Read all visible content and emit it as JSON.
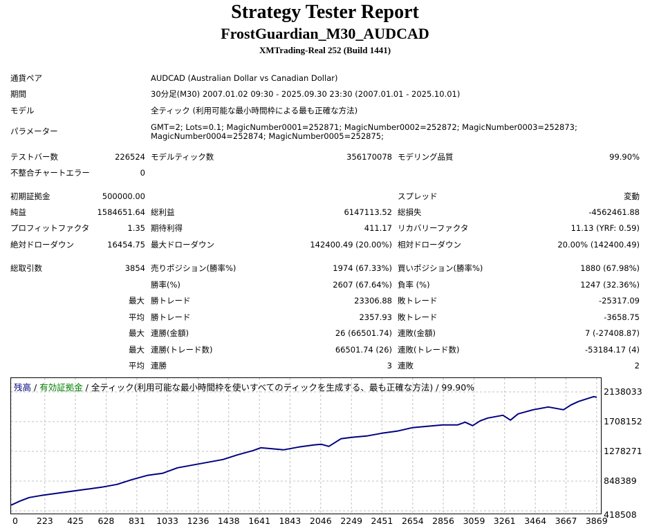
{
  "report": {
    "title": "Strategy Tester Report",
    "subtitle": "FrostGuardian_M30_AUDCAD",
    "server": "XMTrading-Real 252 (Build 1441)"
  },
  "info": {
    "symbol_label": "通貨ペア",
    "symbol": "AUDCAD (Australian Dollar vs Canadian Dollar)",
    "period_label": "期間",
    "period": "30分足(M30) 2007.01.02 09:30 - 2025.09.30 23:30 (2007.01.01 - 2025.10.01)",
    "model_label": "モデル",
    "model": "全ティック (利用可能な最小時間枠による最も正確な方法)",
    "params_label": "パラメーター",
    "params_line1": "GMT=2; Lots=0.1; MagicNumber0001=252871; MagicNumber0002=252872; MagicNumber0003=252873;",
    "params_line2": "MagicNumber0004=252874; MagicNumber0005=252875;"
  },
  "bars": {
    "bars_label": "テストバー数",
    "bars": "226524",
    "ticks_label": "モデルティック数",
    "ticks": "356170078",
    "quality_label": "モデリング品質",
    "quality": "99.90%",
    "errors_label": "不整合チャートエラー",
    "errors": "0"
  },
  "results": {
    "deposit_label": "初期証拠金",
    "deposit": "500000.00",
    "spread_label": "スプレッド",
    "spread": "変動",
    "net_label": "純益",
    "net": "1584651.64",
    "gross_profit_label": "総利益",
    "gross_profit": "6147113.52",
    "gross_loss_label": "総損失",
    "gross_loss": "-4562461.88",
    "pf_label": "プロフィットファクタ",
    "pf": "1.35",
    "expected_label": "期待利得",
    "expected": "411.17",
    "recovery_label": "リカバリーファクタ",
    "recovery": "11.13 (YRF: 0.59)",
    "abs_dd_label": "絶対ドローダウン",
    "abs_dd": "16454.75",
    "max_dd_label": "最大ドローダウン",
    "max_dd": "142400.49 (20.00%)",
    "rel_dd_label": "相対ドローダウン",
    "rel_dd": "20.00% (142400.49)"
  },
  "trades": {
    "total_label": "総取引数",
    "total": "3854",
    "short_label": "売りポジション(勝率%)",
    "short": "1974 (67.33%)",
    "long_label": "買いポジション(勝率%)",
    "long": "1880 (67.98%)",
    "win_label": "勝率(%)",
    "win": "2607 (67.64%)",
    "loss_label": "負率 (%)",
    "loss": "1247 (32.36%)",
    "max_prefix": "最大",
    "avg_prefix": "平均",
    "largest_win_label": "勝トレード",
    "largest_win": "23306.88",
    "largest_loss_label": "敗トレード",
    "largest_loss": "-25317.09",
    "avg_win_label": "勝トレード",
    "avg_win": "2357.93",
    "avg_loss_label": "敗トレード",
    "avg_loss": "-3658.75",
    "max_consec_win_label": "連勝(金額)",
    "max_consec_win": "26 (66501.74)",
    "max_consec_loss_label": "連敗(金額)",
    "max_consec_loss": "7 (-27408.87)",
    "max_consec_profit_label": "連勝(トレード数)",
    "max_consec_profit": "66501.74 (26)",
    "max_consec_lossamt_label": "連敗(トレード数)",
    "max_consec_lossamt": "-53184.17 (4)",
    "avg_consec_win_label": "連勝",
    "avg_consec_win": "3",
    "avg_consec_loss_label": "連敗",
    "avg_consec_loss": "2"
  },
  "legend": {
    "balance": "残高",
    "sep1": " / ",
    "equity": "有効証拠金",
    "sep2": " / ",
    "rest": "全ティック(利用可能な最小時間枠を使いすべてのティックを生成する、最も正確な方法) / 99.90%"
  },
  "colors": {
    "balance": "#000080",
    "equity": "#008000",
    "grid": "#c0c0c0"
  },
  "chart_data": {
    "type": "line",
    "y_ticks": [
      "2138033",
      "1708152",
      "1278271",
      "848389",
      "418508"
    ],
    "x_ticks": [
      "0",
      "223",
      "425",
      "628",
      "831",
      "1033",
      "1236",
      "1438",
      "1641",
      "1843",
      "2046",
      "2249",
      "2451",
      "2654",
      "2856",
      "3059",
      "3261",
      "3464",
      "3667",
      "3869"
    ],
    "xlim": [
      0,
      3870
    ],
    "ylim": [
      418508,
      2138033
    ],
    "grid": true,
    "series": [
      {
        "name": "残高",
        "x": [
          0,
          60,
          120,
          200,
          300,
          400,
          500,
          600,
          700,
          800,
          850,
          900,
          1000,
          1100,
          1200,
          1300,
          1400,
          1500,
          1600,
          1650,
          1700,
          1800,
          1900,
          2000,
          2050,
          2100,
          2180,
          2250,
          2350,
          2450,
          2550,
          2650,
          2750,
          2850,
          2950,
          3000,
          3050,
          3100,
          3150,
          3250,
          3300,
          3350,
          3450,
          3550,
          3650,
          3700,
          3750,
          3850,
          3870
        ],
        "values": [
          500000,
          560000,
          610000,
          640000,
          670000,
          700000,
          730000,
          760000,
          800000,
          870000,
          900000,
          930000,
          960000,
          1040000,
          1080000,
          1120000,
          1160000,
          1230000,
          1290000,
          1330000,
          1320000,
          1300000,
          1340000,
          1370000,
          1380000,
          1350000,
          1460000,
          1480000,
          1500000,
          1540000,
          1570000,
          1620000,
          1640000,
          1660000,
          1660000,
          1700000,
          1650000,
          1720000,
          1760000,
          1800000,
          1730000,
          1820000,
          1880000,
          1920000,
          1880000,
          1950000,
          2000000,
          2070000,
          2060000
        ]
      }
    ]
  }
}
